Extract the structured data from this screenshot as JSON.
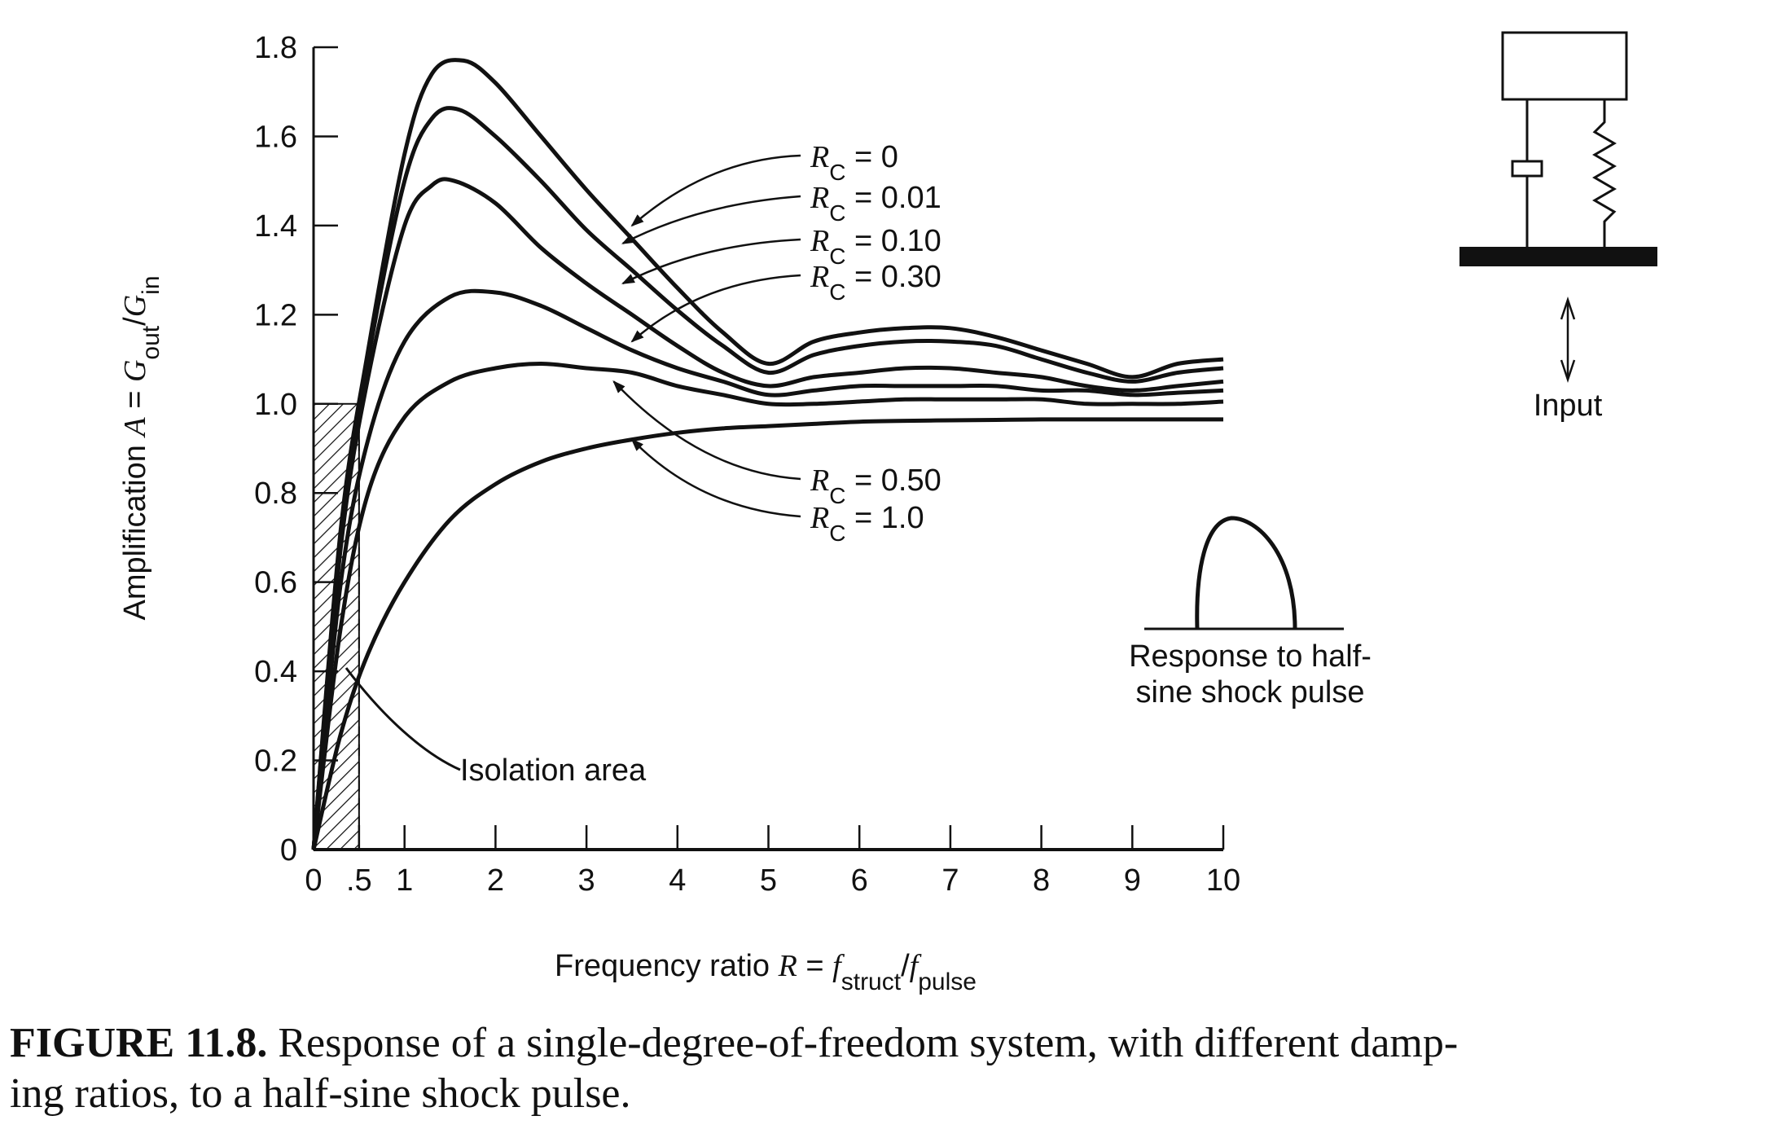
{
  "chart_data": {
    "type": "line",
    "xlabel_prefix": "Frequency ratio",
    "xlabel_var": "R",
    "xlabel_eq": "=",
    "xlabel_f1": "f",
    "xlabel_f1_sub": "struct",
    "xlabel_slash": "/",
    "xlabel_f2": "f",
    "xlabel_f2_sub": "pulse",
    "ylabel_prefix": "Amplification",
    "ylabel_var": "A",
    "ylabel_eq": "=",
    "ylabel_g1": "G",
    "ylabel_g1_sub": "out",
    "ylabel_slash": "/",
    "ylabel_g2": "G",
    "ylabel_g2_sub": "in",
    "xlim": [
      0,
      10
    ],
    "ylim": [
      0,
      1.8
    ],
    "x_ticks": [
      0,
      0.5,
      1,
      2,
      3,
      4,
      5,
      6,
      7,
      8,
      9,
      10
    ],
    "x_tick_labels": [
      "0",
      ".5",
      "1",
      "2",
      "3",
      "4",
      "5",
      "6",
      "7",
      "8",
      "9",
      "10"
    ],
    "y_ticks": [
      0,
      0.2,
      0.4,
      0.6,
      0.8,
      1.0,
      1.2,
      1.4,
      1.6,
      1.8
    ],
    "y_tick_labels": [
      "0",
      "0.2",
      "0.4",
      "0.6",
      "0.8",
      "1.0",
      "1.2",
      "1.4",
      "1.6",
      "1.8"
    ],
    "series": [
      {
        "name": "R_C = 0",
        "label_value": "0",
        "points": [
          [
            0,
            0
          ],
          [
            0.3,
            0.72
          ],
          [
            0.6,
            1.12
          ],
          [
            1.0,
            1.56
          ],
          [
            1.3,
            1.74
          ],
          [
            1.65,
            1.77
          ],
          [
            2.0,
            1.72
          ],
          [
            2.5,
            1.6
          ],
          [
            3.0,
            1.48
          ],
          [
            3.5,
            1.37
          ],
          [
            4.0,
            1.26
          ],
          [
            4.5,
            1.16
          ],
          [
            5.0,
            1.09
          ],
          [
            5.5,
            1.14
          ],
          [
            6.0,
            1.16
          ],
          [
            6.5,
            1.17
          ],
          [
            7.0,
            1.17
          ],
          [
            7.5,
            1.15
          ],
          [
            8.0,
            1.12
          ],
          [
            8.5,
            1.09
          ],
          [
            9.0,
            1.06
          ],
          [
            9.5,
            1.09
          ],
          [
            10.0,
            1.1
          ]
        ]
      },
      {
        "name": "R_C = 0.01",
        "label_value": "0.01",
        "points": [
          [
            0,
            0
          ],
          [
            0.3,
            0.7
          ],
          [
            0.6,
            1.1
          ],
          [
            1.0,
            1.5
          ],
          [
            1.3,
            1.64
          ],
          [
            1.6,
            1.66
          ],
          [
            2.0,
            1.6
          ],
          [
            2.5,
            1.5
          ],
          [
            3.0,
            1.39
          ],
          [
            3.5,
            1.3
          ],
          [
            4.0,
            1.21
          ],
          [
            4.5,
            1.13
          ],
          [
            5.0,
            1.07
          ],
          [
            5.5,
            1.11
          ],
          [
            6.0,
            1.13
          ],
          [
            6.5,
            1.14
          ],
          [
            7.0,
            1.14
          ],
          [
            7.5,
            1.13
          ],
          [
            8.0,
            1.1
          ],
          [
            8.5,
            1.07
          ],
          [
            9.0,
            1.05
          ],
          [
            9.5,
            1.07
          ],
          [
            10.0,
            1.08
          ]
        ]
      },
      {
        "name": "R_C = 0.10",
        "label_value": "0.10",
        "points": [
          [
            0,
            0
          ],
          [
            0.3,
            0.68
          ],
          [
            0.6,
            1.06
          ],
          [
            1.0,
            1.4
          ],
          [
            1.3,
            1.49
          ],
          [
            1.55,
            1.5
          ],
          [
            2.0,
            1.45
          ],
          [
            2.5,
            1.35
          ],
          [
            3.0,
            1.27
          ],
          [
            3.5,
            1.2
          ],
          [
            4.0,
            1.13
          ],
          [
            4.5,
            1.07
          ],
          [
            5.0,
            1.04
          ],
          [
            5.5,
            1.06
          ],
          [
            6.0,
            1.07
          ],
          [
            6.5,
            1.08
          ],
          [
            7.0,
            1.08
          ],
          [
            7.5,
            1.07
          ],
          [
            8.0,
            1.06
          ],
          [
            8.5,
            1.04
          ],
          [
            9.0,
            1.03
          ],
          [
            9.5,
            1.04
          ],
          [
            10.0,
            1.05
          ]
        ]
      },
      {
        "name": "R_C = 0.30",
        "label_value": "0.30",
        "points": [
          [
            0,
            0
          ],
          [
            0.3,
            0.6
          ],
          [
            0.6,
            0.92
          ],
          [
            1.0,
            1.14
          ],
          [
            1.5,
            1.24
          ],
          [
            2.0,
            1.25
          ],
          [
            2.5,
            1.22
          ],
          [
            3.0,
            1.17
          ],
          [
            3.5,
            1.12
          ],
          [
            4.0,
            1.08
          ],
          [
            4.5,
            1.05
          ],
          [
            5.0,
            1.02
          ],
          [
            5.5,
            1.03
          ],
          [
            6.0,
            1.04
          ],
          [
            6.5,
            1.04
          ],
          [
            7.0,
            1.04
          ],
          [
            7.5,
            1.04
          ],
          [
            8.0,
            1.03
          ],
          [
            8.5,
            1.03
          ],
          [
            9.0,
            1.02
          ],
          [
            9.5,
            1.025
          ],
          [
            10.0,
            1.03
          ]
        ]
      },
      {
        "name": "R_C = 0.50",
        "label_value": "0.50",
        "points": [
          [
            0,
            0
          ],
          [
            0.3,
            0.5
          ],
          [
            0.6,
            0.8
          ],
          [
            1.0,
            0.97
          ],
          [
            1.5,
            1.05
          ],
          [
            2.0,
            1.08
          ],
          [
            2.5,
            1.09
          ],
          [
            3.0,
            1.08
          ],
          [
            3.5,
            1.07
          ],
          [
            4.0,
            1.04
          ],
          [
            4.5,
            1.02
          ],
          [
            5.0,
            1.0
          ],
          [
            5.5,
            1.0
          ],
          [
            6.0,
            1.005
          ],
          [
            6.5,
            1.01
          ],
          [
            7.0,
            1.01
          ],
          [
            7.5,
            1.01
          ],
          [
            8.0,
            1.01
          ],
          [
            8.5,
            1.0
          ],
          [
            9.0,
            1.0
          ],
          [
            9.5,
            1.0
          ],
          [
            10.0,
            1.005
          ]
        ]
      },
      {
        "name": "R_C = 1.0",
        "label_value": "1.0",
        "points": [
          [
            0,
            0
          ],
          [
            0.3,
            0.26
          ],
          [
            0.6,
            0.44
          ],
          [
            1.0,
            0.6
          ],
          [
            1.5,
            0.74
          ],
          [
            2.0,
            0.82
          ],
          [
            2.5,
            0.87
          ],
          [
            3.0,
            0.9
          ],
          [
            3.5,
            0.92
          ],
          [
            4.0,
            0.935
          ],
          [
            4.5,
            0.945
          ],
          [
            5.0,
            0.95
          ],
          [
            5.5,
            0.955
          ],
          [
            6.0,
            0.96
          ],
          [
            6.5,
            0.962
          ],
          [
            7.0,
            0.963
          ],
          [
            7.5,
            0.964
          ],
          [
            8.0,
            0.965
          ],
          [
            8.5,
            0.965
          ],
          [
            9.0,
            0.965
          ],
          [
            9.5,
            0.965
          ],
          [
            10.0,
            0.965
          ]
        ]
      }
    ],
    "series_label_var": "R",
    "series_label_sub": "C",
    "series_label_eq": "=",
    "annotations": {
      "isolation_area": "Isolation area",
      "pulse_line1": "Response to half-",
      "pulse_line2": "sine shock pulse",
      "input": "Input"
    }
  },
  "caption": {
    "number": "FIGURE 11.8.",
    "text_line1": "Response of a single-degree-of-freedom system, with different damp-",
    "text_line2": "ing ratios, to a half-sine shock pulse."
  }
}
